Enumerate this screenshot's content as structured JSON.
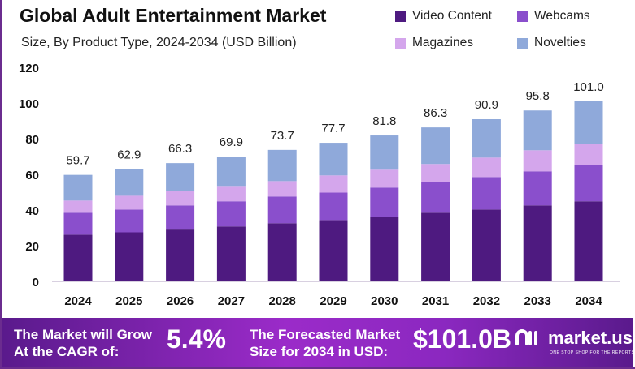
{
  "title": "Global Adult Entertainment Market",
  "subtitle": "Size, By Product Type, 2024-2034 (USD Billion)",
  "colors": {
    "Video Content": "#4e1a80",
    "Webcams": "#8a4fcc",
    "Magazines": "#d4a6ec",
    "Novelties": "#8fa9da"
  },
  "chart_data": {
    "type": "bar",
    "stacked": true,
    "title": "Global Adult Entertainment Market",
    "subtitle": "Size, By Product Type, 2024-2034 (USD Billion)",
    "xlabel": "",
    "ylabel": "",
    "ylim": [
      0,
      120
    ],
    "yticks": [
      0,
      20,
      40,
      60,
      80,
      100,
      120
    ],
    "categories": [
      "2024",
      "2025",
      "2026",
      "2027",
      "2028",
      "2029",
      "2030",
      "2031",
      "2032",
      "2033",
      "2034"
    ],
    "series": [
      {
        "name": "Video Content",
        "values": [
          26.2,
          27.5,
          29.5,
          30.8,
          32.6,
          34.4,
          36.2,
          38.5,
          40.3,
          42.6,
          44.9
        ]
      },
      {
        "name": "Webcams",
        "values": [
          12.3,
          12.8,
          13.1,
          14.1,
          15.0,
          15.4,
          16.4,
          17.3,
          18.2,
          19.1,
          20.4
        ]
      },
      {
        "name": "Magazines",
        "values": [
          6.8,
          7.7,
          8.2,
          8.6,
          8.6,
          9.6,
          10.0,
          10.0,
          10.9,
          11.8,
          11.7
        ]
      },
      {
        "name": "Novelties",
        "values": [
          14.4,
          14.9,
          15.5,
          16.4,
          17.5,
          18.3,
          19.2,
          20.5,
          21.5,
          22.3,
          24.0
        ]
      }
    ],
    "totals": [
      "59.7",
      "62.9",
      "66.3",
      "69.9",
      "73.7",
      "77.7",
      "81.8",
      "86.3",
      "90.9",
      "95.8",
      "101.0"
    ],
    "legend": "top-right"
  },
  "banner": {
    "cagr_label_1": "The Market will Grow",
    "cagr_label_2": "At the CAGR of:",
    "cagr_value": "5.4%",
    "forecast_label_1": "The Forecasted Market",
    "forecast_label_2": "Size for 2034 in USD:",
    "forecast_value": "$101.0B",
    "logo_name": "market.us",
    "logo_tagline": "ONE STOP SHOP FOR THE REPORTS"
  }
}
